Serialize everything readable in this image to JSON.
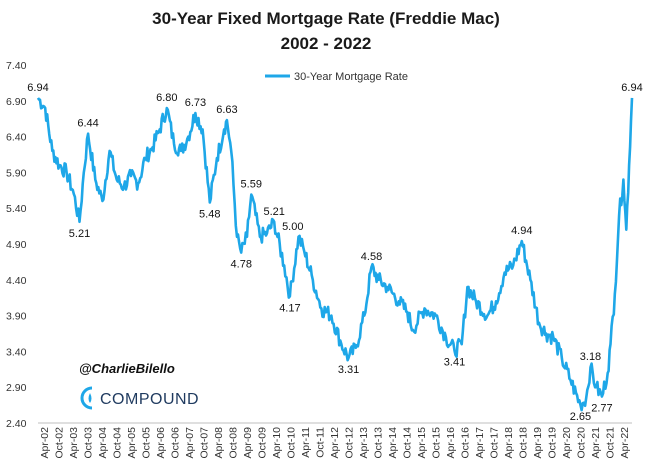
{
  "chart_data": {
    "type": "line",
    "title": "30-Year Fixed Mortgage Rate (Freddie Mac)",
    "subtitle": "2002 - 2022",
    "xlabel": "",
    "ylabel": "",
    "ylim": [
      2.4,
      7.4
    ],
    "yticks": [
      "7.40",
      "6.90",
      "6.40",
      "5.90",
      "5.40",
      "4.90",
      "4.40",
      "3.90",
      "3.40",
      "2.90",
      "2.40"
    ],
    "xticks": [
      "Apr-02",
      "Oct-02",
      "Apr-03",
      "Oct-03",
      "Apr-04",
      "Oct-04",
      "Apr-05",
      "Oct-05",
      "Apr-06",
      "Oct-06",
      "Apr-07",
      "Oct-07",
      "Apr-08",
      "Oct-08",
      "Apr-09",
      "Oct-09",
      "Apr-10",
      "Oct-10",
      "Apr-11",
      "Oct-11",
      "Apr-12",
      "Oct-12",
      "Apr-13",
      "Oct-13",
      "Apr-14",
      "Oct-14",
      "Apr-15",
      "Oct-15",
      "Apr-16",
      "Oct-16",
      "Apr-17",
      "Oct-17",
      "Apr-18",
      "Oct-18",
      "Apr-19",
      "Oct-19",
      "Apr-20",
      "Oct-20",
      "Apr-21",
      "Oct-21",
      "Apr-22"
    ],
    "x_start_year": 2002.0,
    "x_end_year": 2022.75,
    "legend": "top-center",
    "grid": false,
    "color": "#1ea7e8",
    "series": [
      {
        "name": "30-Year Mortgage Rate",
        "points": [
          [
            2002.0,
            6.94
          ],
          [
            2002.25,
            6.8
          ],
          [
            2002.5,
            6.2
          ],
          [
            2002.75,
            6.0
          ],
          [
            2003.0,
            5.9
          ],
          [
            2003.25,
            5.6
          ],
          [
            2003.45,
            5.21
          ],
          [
            2003.6,
            5.9
          ],
          [
            2003.75,
            6.44
          ],
          [
            2004.0,
            5.8
          ],
          [
            2004.25,
            5.5
          ],
          [
            2004.5,
            6.2
          ],
          [
            2004.75,
            5.8
          ],
          [
            2005.0,
            5.7
          ],
          [
            2005.25,
            5.85
          ],
          [
            2005.5,
            5.75
          ],
          [
            2005.75,
            6.1
          ],
          [
            2006.0,
            6.25
          ],
          [
            2006.25,
            6.5
          ],
          [
            2006.5,
            6.8
          ],
          [
            2006.75,
            6.3
          ],
          [
            2007.0,
            6.2
          ],
          [
            2007.25,
            6.4
          ],
          [
            2007.5,
            6.73
          ],
          [
            2007.75,
            6.5
          ],
          [
            2008.0,
            5.48
          ],
          [
            2008.25,
            6.1
          ],
          [
            2008.5,
            6.5
          ],
          [
            2008.6,
            6.63
          ],
          [
            2008.75,
            6.2
          ],
          [
            2008.95,
            5.0
          ],
          [
            2009.1,
            4.78
          ],
          [
            2009.3,
            5.0
          ],
          [
            2009.45,
            5.59
          ],
          [
            2009.75,
            5.0
          ],
          [
            2010.0,
            5.05
          ],
          [
            2010.25,
            5.21
          ],
          [
            2010.6,
            4.6
          ],
          [
            2010.8,
            4.17
          ],
          [
            2011.1,
            5.0
          ],
          [
            2011.3,
            4.8
          ],
          [
            2011.6,
            4.4
          ],
          [
            2011.9,
            4.0
          ],
          [
            2012.25,
            3.9
          ],
          [
            2012.6,
            3.5
          ],
          [
            2012.85,
            3.31
          ],
          [
            2013.1,
            3.45
          ],
          [
            2013.4,
            3.9
          ],
          [
            2013.65,
            4.58
          ],
          [
            2013.9,
            4.4
          ],
          [
            2014.2,
            4.3
          ],
          [
            2014.6,
            4.1
          ],
          [
            2014.9,
            3.95
          ],
          [
            2015.1,
            3.7
          ],
          [
            2015.5,
            4.0
          ],
          [
            2015.9,
            3.9
          ],
          [
            2016.25,
            3.6
          ],
          [
            2016.55,
            3.41
          ],
          [
            2016.8,
            3.5
          ],
          [
            2017.0,
            4.3
          ],
          [
            2017.3,
            4.1
          ],
          [
            2017.7,
            3.9
          ],
          [
            2018.0,
            4.1
          ],
          [
            2018.3,
            4.5
          ],
          [
            2018.6,
            4.6
          ],
          [
            2018.9,
            4.94
          ],
          [
            2019.2,
            4.4
          ],
          [
            2019.5,
            3.8
          ],
          [
            2019.75,
            3.65
          ],
          [
            2020.0,
            3.6
          ],
          [
            2020.3,
            3.3
          ],
          [
            2020.6,
            3.0
          ],
          [
            2020.95,
            2.65
          ],
          [
            2021.15,
            2.75
          ],
          [
            2021.3,
            3.18
          ],
          [
            2021.5,
            2.9
          ],
          [
            2021.7,
            2.77
          ],
          [
            2021.9,
            3.1
          ],
          [
            2022.0,
            3.5
          ],
          [
            2022.15,
            4.2
          ],
          [
            2022.3,
            5.3
          ],
          [
            2022.45,
            5.8
          ],
          [
            2022.55,
            5.1
          ],
          [
            2022.65,
            6.0
          ],
          [
            2022.75,
            6.94
          ]
        ]
      }
    ],
    "annotations": [
      {
        "text": "6.94",
        "x": 2002.0,
        "y": 6.94
      },
      {
        "text": "6.44",
        "x": 2003.75,
        "y": 6.44
      },
      {
        "text": "5.21",
        "x": 2003.45,
        "y": 5.21
      },
      {
        "text": "6.80",
        "x": 2006.5,
        "y": 6.8
      },
      {
        "text": "6.73",
        "x": 2007.5,
        "y": 6.73
      },
      {
        "text": "6.63",
        "x": 2008.6,
        "y": 6.63
      },
      {
        "text": "5.48",
        "x": 2008.0,
        "y": 5.48
      },
      {
        "text": "5.59",
        "x": 2009.45,
        "y": 5.59
      },
      {
        "text": "4.78",
        "x": 2009.1,
        "y": 4.78
      },
      {
        "text": "5.21",
        "x": 2010.25,
        "y": 5.21
      },
      {
        "text": "5.00",
        "x": 2010.9,
        "y": 5.0
      },
      {
        "text": "4.17",
        "x": 2010.8,
        "y": 4.17
      },
      {
        "text": "4.58",
        "x": 2013.65,
        "y": 4.58
      },
      {
        "text": "3.31",
        "x": 2012.85,
        "y": 3.31
      },
      {
        "text": "3.41",
        "x": 2016.55,
        "y": 3.41
      },
      {
        "text": "4.94",
        "x": 2018.9,
        "y": 4.94
      },
      {
        "text": "3.18",
        "x": 2021.3,
        "y": 3.18
      },
      {
        "text": "2.65",
        "x": 2020.95,
        "y": 2.65
      },
      {
        "text": "2.77",
        "x": 2021.7,
        "y": 2.77
      },
      {
        "text": "6.94",
        "x": 2022.75,
        "y": 6.94
      }
    ]
  },
  "branding": {
    "handle": "@CharlieBilello",
    "company": "COMPOUND",
    "logo_icon": "compound-logo-icon"
  }
}
